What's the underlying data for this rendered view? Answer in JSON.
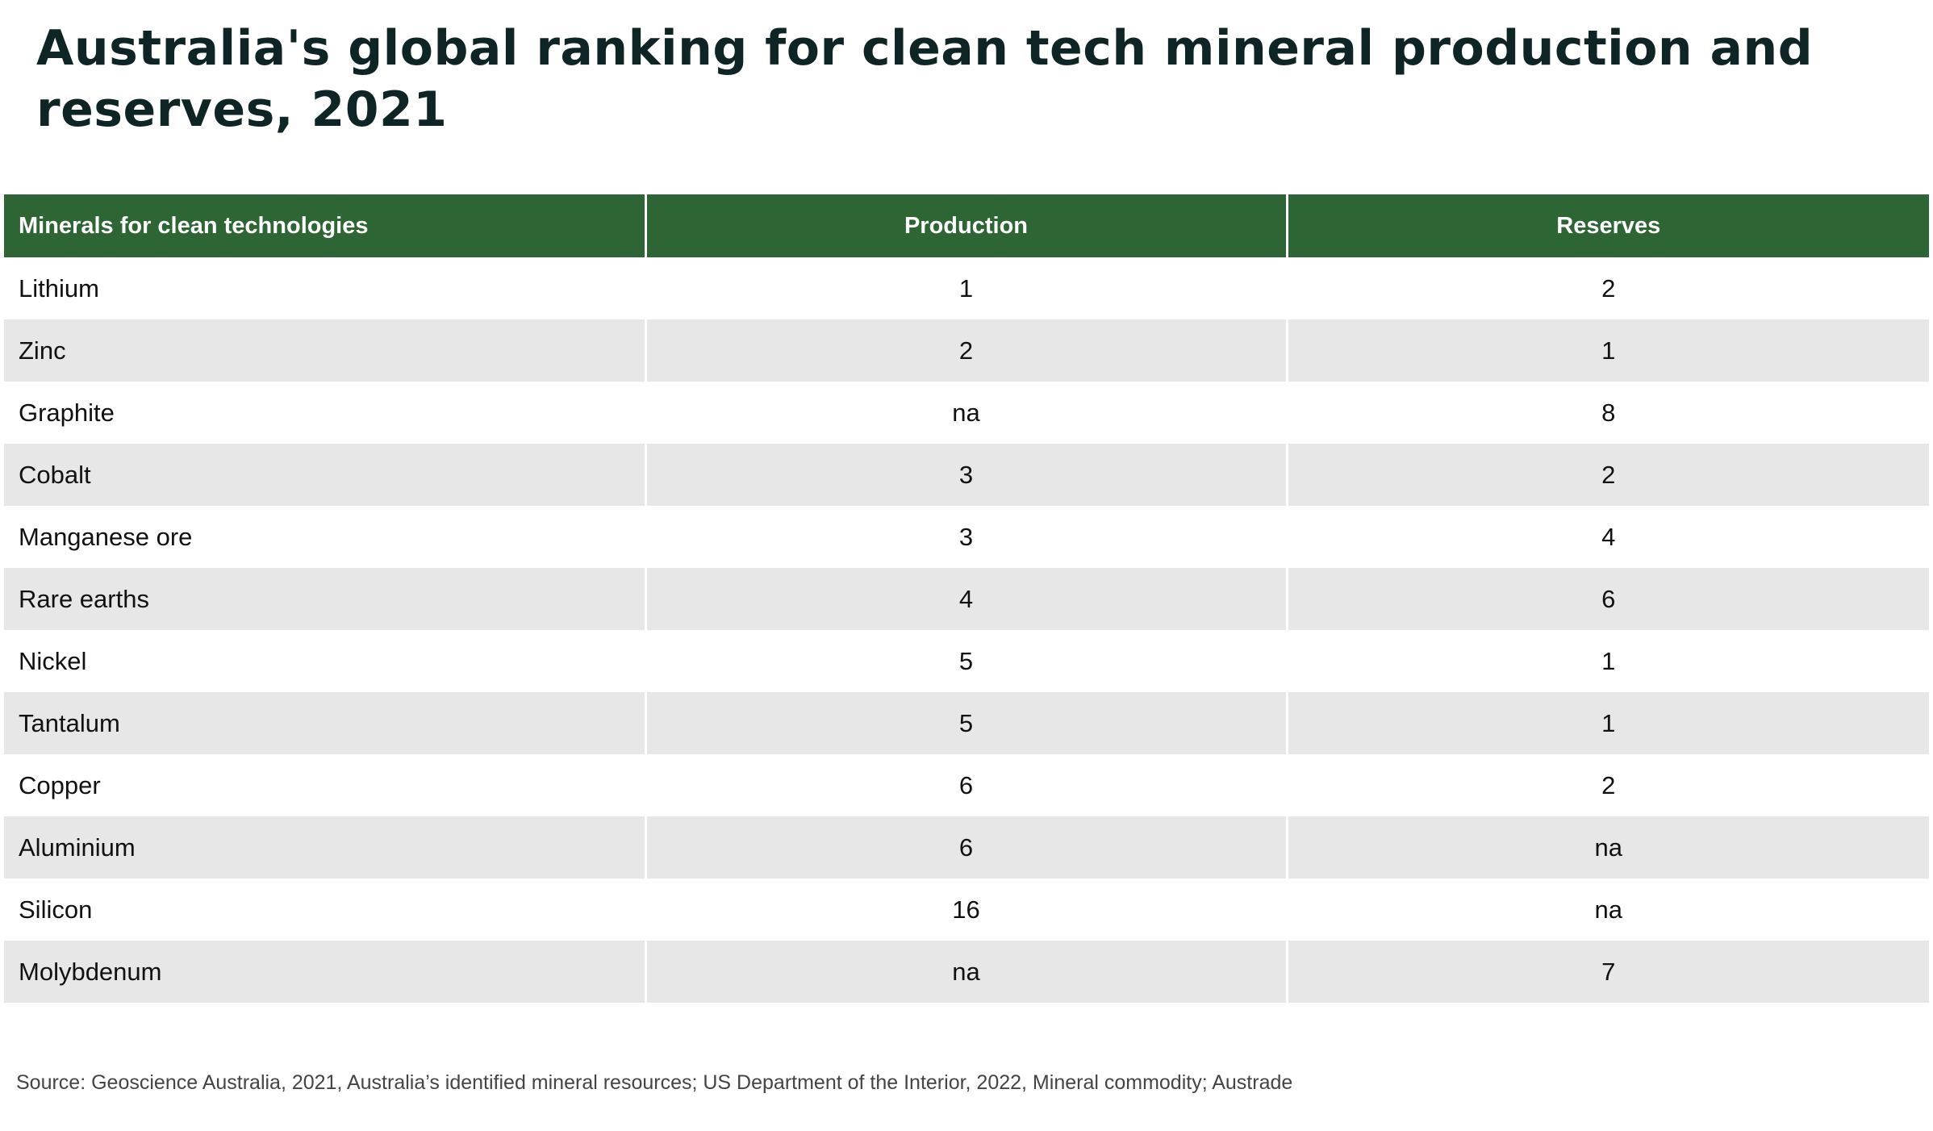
{
  "title": "Australia's global ranking for clean tech mineral production and reserves, 2021",
  "source": "Source: Geoscience Australia, 2021, Australia’s identified mineral resources; US Department of the Interior, 2022, Mineral commodity; Austrade",
  "colors": {
    "header_bg": "#2d6634",
    "header_text": "#ffffff",
    "row_alt_bg": "#e7e7e7",
    "title_color": "#0f2424"
  },
  "chart_data": {
    "type": "table",
    "title": "Australia's global ranking for clean tech mineral production and reserves, 2021",
    "columns": [
      "Minerals for clean technologies",
      "Production",
      "Reserves"
    ],
    "rows": [
      [
        "Lithium",
        "1",
        "2"
      ],
      [
        "Zinc",
        "2",
        "1"
      ],
      [
        "Graphite",
        "na",
        "8"
      ],
      [
        "Cobalt",
        "3",
        "2"
      ],
      [
        "Manganese ore",
        "3",
        "4"
      ],
      [
        "Rare earths",
        "4",
        "6"
      ],
      [
        "Nickel",
        "5",
        "1"
      ],
      [
        "Tantalum",
        "5",
        "1"
      ],
      [
        "Copper",
        "6",
        "2"
      ],
      [
        "Aluminium",
        "6",
        "na"
      ],
      [
        "Silicon",
        "16",
        "na"
      ],
      [
        "Molybdenum",
        "na",
        "7"
      ]
    ]
  }
}
